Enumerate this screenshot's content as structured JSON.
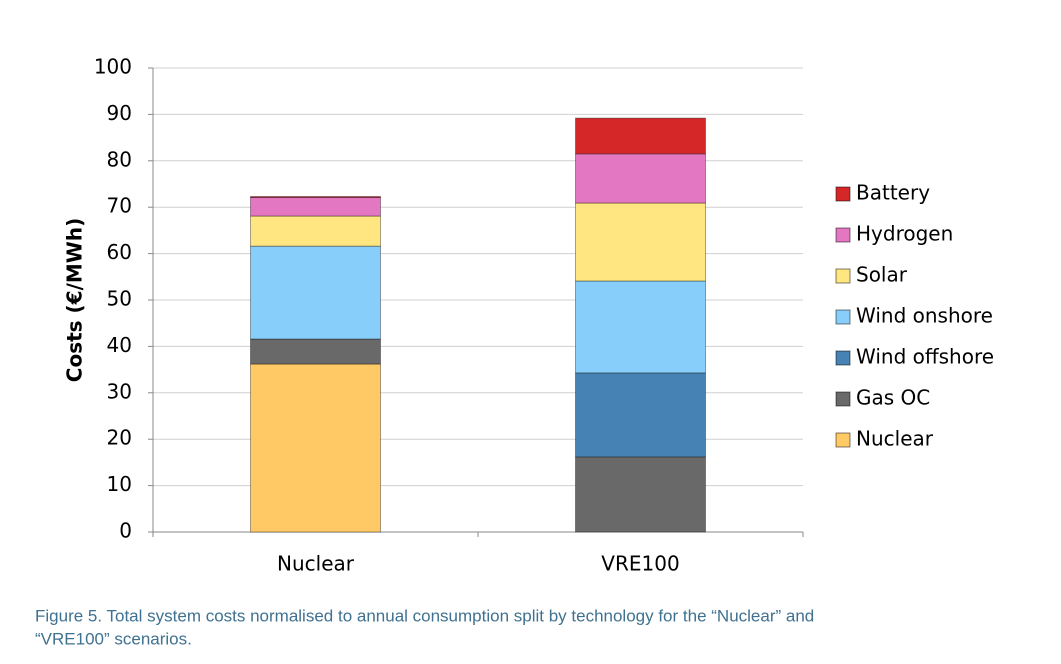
{
  "chart_data": {
    "type": "stacked-bar",
    "y_label": "Costs (€/MWh)",
    "categories": [
      "Nuclear",
      "VRE100"
    ],
    "series": [
      {
        "name": "Nuclear",
        "color": "#ffc966",
        "values": [
          36.2,
          0
        ]
      },
      {
        "name": "Gas OC",
        "color": "#696969",
        "values": [
          5.4,
          16.2
        ]
      },
      {
        "name": "Wind offshore",
        "color": "#4682b4",
        "values": [
          0,
          18.1
        ]
      },
      {
        "name": "Wind onshore",
        "color": "#87cefa",
        "values": [
          20.0,
          19.8
        ]
      },
      {
        "name": "Solar",
        "color": "#ffe680",
        "values": [
          6.5,
          16.8
        ]
      },
      {
        "name": "Hydrogen",
        "color": "#e377c2",
        "values": [
          4.0,
          10.6
        ]
      },
      {
        "name": "Battery",
        "color": "#d62728",
        "values": [
          0.2,
          7.7
        ]
      }
    ],
    "ylim": [
      0,
      100
    ],
    "yticks": [
      0,
      10,
      20,
      30,
      40,
      50,
      60,
      70,
      80,
      90,
      100
    ],
    "grid": true,
    "legend": "right",
    "caption": [
      "Figure 5. Total system costs normalised to annual consumption split by technology for the “Nuclear” and",
      "“VRE100” scenarios."
    ]
  }
}
